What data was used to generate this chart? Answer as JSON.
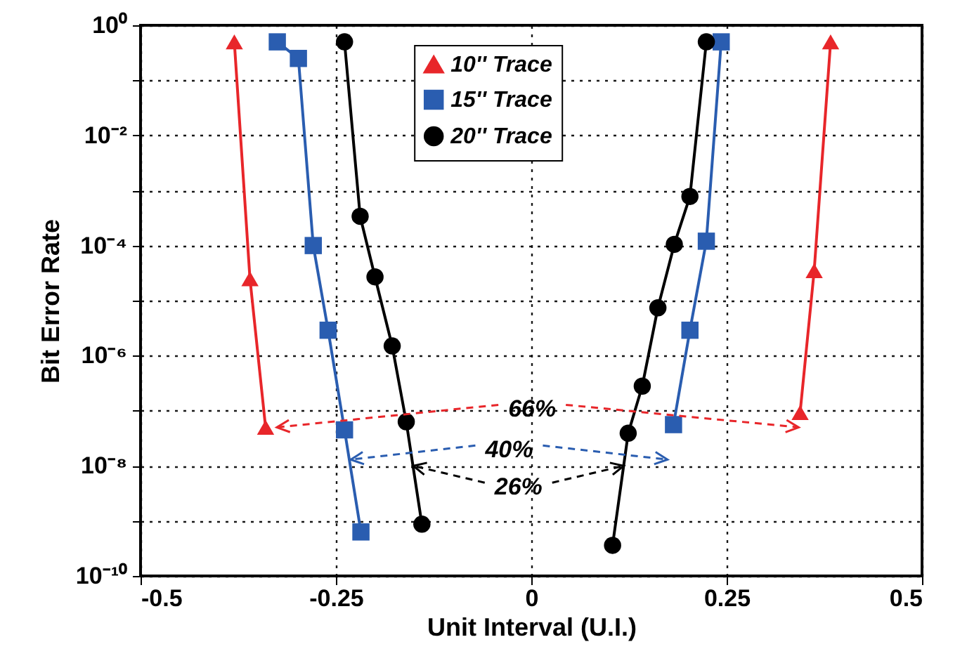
{
  "chart_data": {
    "type": "line",
    "xlabel": "Unit Interval (U.I.)",
    "ylabel": "Bit Error Rate",
    "xlim": [
      -0.5,
      0.5
    ],
    "xticks": [
      -0.5,
      -0.25,
      0,
      0.25,
      0.5
    ],
    "ylim": [
      1e-10,
      1
    ],
    "log": true,
    "yticks": [
      {
        "value": 1,
        "label": "10⁰"
      },
      {
        "value": 0.1,
        "label": null
      },
      {
        "value": 0.01,
        "label": "10⁻²"
      },
      {
        "value": 0.001,
        "label": null
      },
      {
        "value": 0.0001,
        "label": "10⁻⁴"
      },
      {
        "value": 1e-05,
        "label": null
      },
      {
        "value": 1e-06,
        "label": "10⁻⁶"
      },
      {
        "value": 1e-07,
        "label": null
      },
      {
        "value": 1e-08,
        "label": "10⁻⁸"
      },
      {
        "value": 1e-09,
        "label": null
      },
      {
        "value": 1e-10,
        "label": "10⁻¹⁰"
      }
    ],
    "grid": true,
    "legend": "top",
    "line_style": "solid",
    "series": [
      {
        "name": "10'' Trace",
        "color": "#e8262a",
        "marker": "triangle",
        "x": [
          -0.38,
          -0.36,
          -0.34,
          null,
          0.344,
          0.362,
          0.383
        ],
        "values": [
          0.5,
          2.5e-05,
          5e-08,
          null,
          9.3e-08,
          3.5e-05,
          0.5
        ]
      },
      {
        "name": "15'' Trace",
        "color": "#2a5db0",
        "marker": "square",
        "x": [
          -0.325,
          -0.298,
          -0.279,
          -0.26,
          -0.239,
          -0.218,
          null,
          0.182,
          0.203,
          0.224,
          0.243
        ],
        "values": [
          0.5,
          0.25,
          0.0001,
          2.9e-06,
          4.5e-08,
          6.3e-10,
          null,
          5.6e-08,
          2.9e-06,
          0.00012,
          0.5
        ]
      },
      {
        "name": "20'' Trace",
        "color": "#000000",
        "marker": "circle",
        "x": [
          -0.239,
          -0.219,
          -0.2,
          -0.178,
          -0.16,
          -0.14,
          null,
          0.104,
          0.124,
          0.142,
          0.162,
          0.183,
          0.203,
          0.224
        ],
        "values": [
          0.5,
          0.00034,
          2.7e-05,
          1.5e-06,
          6.3e-08,
          8.7e-10,
          null,
          3.6e-10,
          3.9e-08,
          2.8e-07,
          7.4e-06,
          0.000105,
          0.00078,
          0.5
        ]
      }
    ],
    "annotations": [
      {
        "text": "66%",
        "x": -0.34,
        "y": 5e-08
      },
      {
        "text": "40%",
        "x": -0.231,
        "y": 1.3e-08
      },
      {
        "text": "26%",
        "x": -0.151,
        "y": 1e-08
      }
    ]
  }
}
